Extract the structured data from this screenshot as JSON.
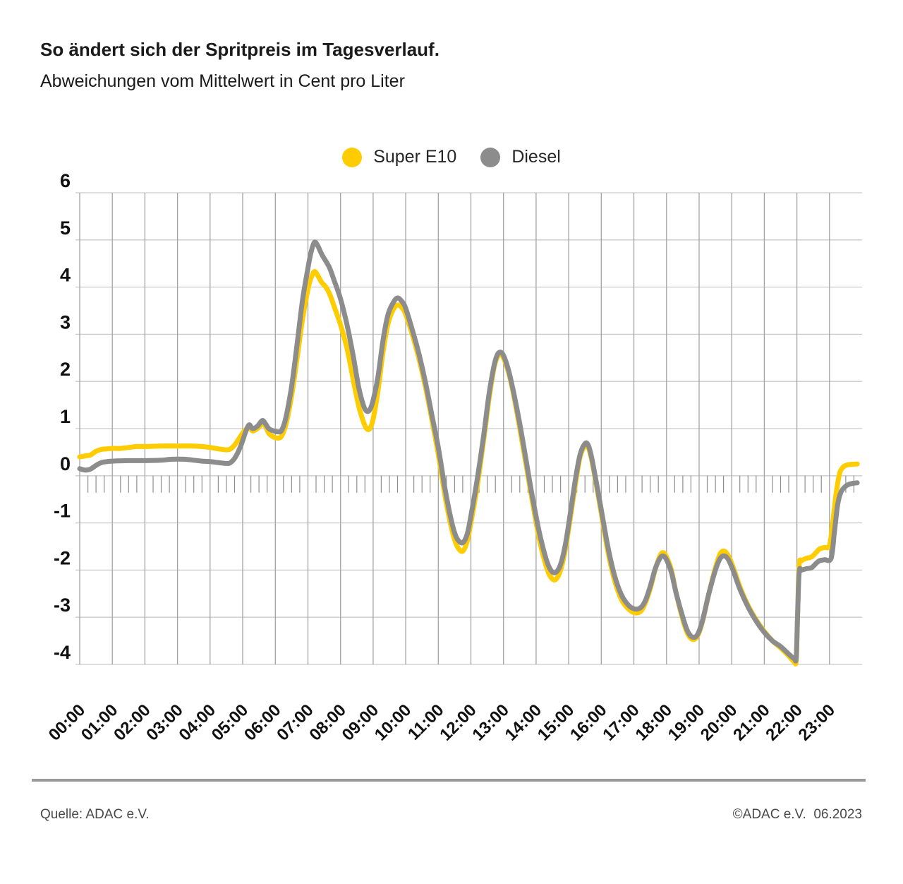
{
  "footer": {
    "source": "Quelle: ADAC e.V.",
    "copyright": "©ADAC e.V.  06.2023"
  },
  "chart_data": {
    "type": "line",
    "title": "So ändert sich der Spritpreis im Tagesverlauf.",
    "subtitle": "Abweichungen vom Mittelwert in Cent pro Liter",
    "xlabel": "",
    "ylabel": "Cent pro Liter (Abweichung vom Mittelwert)",
    "ylim": [
      -4,
      6
    ],
    "xlim_hours": [
      0,
      24
    ],
    "grid": true,
    "legend_position": "top-center",
    "y_ticks": [
      6,
      5,
      4,
      3,
      2,
      1,
      0,
      -1,
      -2,
      -3,
      -4
    ],
    "x_tick_labels": [
      "00:00",
      "01:00",
      "02:00",
      "03:00",
      "04:00",
      "05:00",
      "06:00",
      "07:00",
      "08:00",
      "09:00",
      "10:00",
      "11:00",
      "12:00",
      "13:00",
      "14:00",
      "15:00",
      "16:00",
      "17:00",
      "18:00",
      "19:00",
      "20:00",
      "21:00",
      "22:00",
      "23:00"
    ],
    "minor_tick_minutes": 15,
    "colors": {
      "super_e10": "#FFCC00",
      "diesel": "#8C8C8C",
      "grid_h": "#c9c9c9",
      "grid_v": "#a3a3a3",
      "tick": "#8f8f8f",
      "label": "#111111"
    },
    "series": [
      {
        "name": "Super E10",
        "color": "#FFCC00",
        "points": [
          [
            0.0,
            0.4
          ],
          [
            0.17,
            0.42
          ],
          [
            0.33,
            0.44
          ],
          [
            0.5,
            0.52
          ],
          [
            0.67,
            0.56
          ],
          [
            0.83,
            0.57
          ],
          [
            1.0,
            0.58
          ],
          [
            1.25,
            0.58
          ],
          [
            1.5,
            0.6
          ],
          [
            1.75,
            0.62
          ],
          [
            2.0,
            0.62
          ],
          [
            2.5,
            0.63
          ],
          [
            3.0,
            0.63
          ],
          [
            3.5,
            0.63
          ],
          [
            3.75,
            0.62
          ],
          [
            4.0,
            0.6
          ],
          [
            4.25,
            0.57
          ],
          [
            4.5,
            0.55
          ],
          [
            4.63,
            0.57
          ],
          [
            4.75,
            0.65
          ],
          [
            4.9,
            0.8
          ],
          [
            5.05,
            0.95
          ],
          [
            5.2,
            1.02
          ],
          [
            5.3,
            0.95
          ],
          [
            5.45,
            1.0
          ],
          [
            5.6,
            1.1
          ],
          [
            5.7,
            1.05
          ],
          [
            5.8,
            0.9
          ],
          [
            5.95,
            0.82
          ],
          [
            6.1,
            0.8
          ],
          [
            6.2,
            0.85
          ],
          [
            6.33,
            1.1
          ],
          [
            6.5,
            1.7
          ],
          [
            6.67,
            2.5
          ],
          [
            6.83,
            3.3
          ],
          [
            7.0,
            3.95
          ],
          [
            7.1,
            4.2
          ],
          [
            7.2,
            4.33
          ],
          [
            7.3,
            4.25
          ],
          [
            7.42,
            4.1
          ],
          [
            7.55,
            4.0
          ],
          [
            7.67,
            3.85
          ],
          [
            7.8,
            3.6
          ],
          [
            8.0,
            3.2
          ],
          [
            8.2,
            2.7
          ],
          [
            8.4,
            2.0
          ],
          [
            8.55,
            1.5
          ],
          [
            8.7,
            1.15
          ],
          [
            8.8,
            1.0
          ],
          [
            8.9,
            1.0
          ],
          [
            9.0,
            1.2
          ],
          [
            9.15,
            1.8
          ],
          [
            9.3,
            2.6
          ],
          [
            9.45,
            3.2
          ],
          [
            9.6,
            3.5
          ],
          [
            9.75,
            3.62
          ],
          [
            9.9,
            3.55
          ],
          [
            10.0,
            3.42
          ],
          [
            10.2,
            3.0
          ],
          [
            10.4,
            2.5
          ],
          [
            10.6,
            1.9
          ],
          [
            10.8,
            1.2
          ],
          [
            11.0,
            0.45
          ],
          [
            11.2,
            -0.4
          ],
          [
            11.4,
            -1.1
          ],
          [
            11.55,
            -1.45
          ],
          [
            11.7,
            -1.6
          ],
          [
            11.8,
            -1.55
          ],
          [
            11.9,
            -1.35
          ],
          [
            12.0,
            -1.0
          ],
          [
            12.2,
            -0.2
          ],
          [
            12.4,
            0.8
          ],
          [
            12.55,
            1.6
          ],
          [
            12.7,
            2.25
          ],
          [
            12.8,
            2.5
          ],
          [
            12.9,
            2.57
          ],
          [
            13.0,
            2.5
          ],
          [
            13.15,
            2.2
          ],
          [
            13.3,
            1.75
          ],
          [
            13.5,
            1.0
          ],
          [
            13.7,
            0.2
          ],
          [
            13.9,
            -0.6
          ],
          [
            14.1,
            -1.35
          ],
          [
            14.3,
            -1.9
          ],
          [
            14.45,
            -2.15
          ],
          [
            14.6,
            -2.2
          ],
          [
            14.75,
            -2.0
          ],
          [
            14.9,
            -1.55
          ],
          [
            15.05,
            -0.9
          ],
          [
            15.2,
            -0.2
          ],
          [
            15.35,
            0.4
          ],
          [
            15.5,
            0.63
          ],
          [
            15.6,
            0.6
          ],
          [
            15.7,
            0.35
          ],
          [
            15.85,
            -0.2
          ],
          [
            16.0,
            -0.8
          ],
          [
            16.2,
            -1.6
          ],
          [
            16.4,
            -2.2
          ],
          [
            16.6,
            -2.6
          ],
          [
            16.8,
            -2.8
          ],
          [
            17.0,
            -2.9
          ],
          [
            17.2,
            -2.88
          ],
          [
            17.35,
            -2.7
          ],
          [
            17.5,
            -2.4
          ],
          [
            17.65,
            -2.0
          ],
          [
            17.8,
            -1.7
          ],
          [
            17.9,
            -1.63
          ],
          [
            18.0,
            -1.72
          ],
          [
            18.15,
            -2.0
          ],
          [
            18.3,
            -2.5
          ],
          [
            18.5,
            -3.05
          ],
          [
            18.65,
            -3.35
          ],
          [
            18.8,
            -3.47
          ],
          [
            18.95,
            -3.4
          ],
          [
            19.1,
            -3.1
          ],
          [
            19.3,
            -2.5
          ],
          [
            19.5,
            -1.95
          ],
          [
            19.65,
            -1.65
          ],
          [
            19.78,
            -1.6
          ],
          [
            19.9,
            -1.7
          ],
          [
            20.05,
            -1.95
          ],
          [
            20.25,
            -2.35
          ],
          [
            20.5,
            -2.75
          ],
          [
            20.75,
            -3.05
          ],
          [
            21.0,
            -3.3
          ],
          [
            21.25,
            -3.5
          ],
          [
            21.5,
            -3.65
          ],
          [
            21.75,
            -3.82
          ],
          [
            21.92,
            -3.95
          ],
          [
            21.98,
            -3.9
          ],
          [
            22.02,
            -3.0
          ],
          [
            22.07,
            -1.9
          ],
          [
            22.15,
            -1.8
          ],
          [
            22.3,
            -1.75
          ],
          [
            22.45,
            -1.72
          ],
          [
            22.6,
            -1.62
          ],
          [
            22.7,
            -1.55
          ],
          [
            22.85,
            -1.52
          ],
          [
            23.0,
            -1.48
          ],
          [
            23.1,
            -1.0
          ],
          [
            23.2,
            -0.4
          ],
          [
            23.3,
            0.02
          ],
          [
            23.4,
            0.17
          ],
          [
            23.55,
            0.23
          ],
          [
            23.85,
            0.25
          ]
        ]
      },
      {
        "name": "Diesel",
        "color": "#8C8C8C",
        "points": [
          [
            0.0,
            0.15
          ],
          [
            0.17,
            0.12
          ],
          [
            0.33,
            0.14
          ],
          [
            0.5,
            0.22
          ],
          [
            0.67,
            0.28
          ],
          [
            0.83,
            0.3
          ],
          [
            1.0,
            0.31
          ],
          [
            1.5,
            0.32
          ],
          [
            2.0,
            0.32
          ],
          [
            2.5,
            0.33
          ],
          [
            2.83,
            0.35
          ],
          [
            3.2,
            0.35
          ],
          [
            3.5,
            0.33
          ],
          [
            3.75,
            0.31
          ],
          [
            4.0,
            0.3
          ],
          [
            4.25,
            0.28
          ],
          [
            4.5,
            0.26
          ],
          [
            4.63,
            0.28
          ],
          [
            4.78,
            0.4
          ],
          [
            4.95,
            0.65
          ],
          [
            5.1,
            0.95
          ],
          [
            5.2,
            1.08
          ],
          [
            5.3,
            1.0
          ],
          [
            5.45,
            1.05
          ],
          [
            5.6,
            1.17
          ],
          [
            5.7,
            1.1
          ],
          [
            5.8,
            1.0
          ],
          [
            5.95,
            0.95
          ],
          [
            6.1,
            0.93
          ],
          [
            6.2,
            0.97
          ],
          [
            6.33,
            1.25
          ],
          [
            6.5,
            1.9
          ],
          [
            6.67,
            2.8
          ],
          [
            6.83,
            3.7
          ],
          [
            7.0,
            4.4
          ],
          [
            7.1,
            4.75
          ],
          [
            7.2,
            4.95
          ],
          [
            7.3,
            4.88
          ],
          [
            7.42,
            4.7
          ],
          [
            7.55,
            4.55
          ],
          [
            7.67,
            4.4
          ],
          [
            7.8,
            4.15
          ],
          [
            8.0,
            3.75
          ],
          [
            8.2,
            3.2
          ],
          [
            8.4,
            2.5
          ],
          [
            8.55,
            1.9
          ],
          [
            8.7,
            1.5
          ],
          [
            8.8,
            1.37
          ],
          [
            8.9,
            1.4
          ],
          [
            9.0,
            1.6
          ],
          [
            9.15,
            2.1
          ],
          [
            9.3,
            2.85
          ],
          [
            9.45,
            3.4
          ],
          [
            9.6,
            3.65
          ],
          [
            9.75,
            3.77
          ],
          [
            9.9,
            3.68
          ],
          [
            10.0,
            3.55
          ],
          [
            10.2,
            3.1
          ],
          [
            10.4,
            2.6
          ],
          [
            10.6,
            2.0
          ],
          [
            10.8,
            1.3
          ],
          [
            11.0,
            0.6
          ],
          [
            11.2,
            -0.25
          ],
          [
            11.4,
            -0.95
          ],
          [
            11.55,
            -1.3
          ],
          [
            11.7,
            -1.42
          ],
          [
            11.8,
            -1.38
          ],
          [
            11.9,
            -1.2
          ],
          [
            12.0,
            -0.85
          ],
          [
            12.2,
            -0.05
          ],
          [
            12.4,
            0.9
          ],
          [
            12.55,
            1.7
          ],
          [
            12.7,
            2.3
          ],
          [
            12.8,
            2.55
          ],
          [
            12.9,
            2.62
          ],
          [
            13.0,
            2.55
          ],
          [
            13.15,
            2.25
          ],
          [
            13.3,
            1.8
          ],
          [
            13.5,
            1.1
          ],
          [
            13.7,
            0.3
          ],
          [
            13.9,
            -0.5
          ],
          [
            14.1,
            -1.2
          ],
          [
            14.3,
            -1.75
          ],
          [
            14.45,
            -2.0
          ],
          [
            14.6,
            -2.05
          ],
          [
            14.75,
            -1.88
          ],
          [
            14.9,
            -1.45
          ],
          [
            15.05,
            -0.8
          ],
          [
            15.2,
            -0.1
          ],
          [
            15.35,
            0.45
          ],
          [
            15.5,
            0.68
          ],
          [
            15.6,
            0.65
          ],
          [
            15.7,
            0.4
          ],
          [
            15.85,
            -0.15
          ],
          [
            16.0,
            -0.72
          ],
          [
            16.2,
            -1.5
          ],
          [
            16.4,
            -2.1
          ],
          [
            16.6,
            -2.5
          ],
          [
            16.8,
            -2.72
          ],
          [
            17.0,
            -2.82
          ],
          [
            17.2,
            -2.8
          ],
          [
            17.35,
            -2.65
          ],
          [
            17.5,
            -2.35
          ],
          [
            17.65,
            -1.98
          ],
          [
            17.8,
            -1.75
          ],
          [
            17.9,
            -1.7
          ],
          [
            18.0,
            -1.78
          ],
          [
            18.15,
            -2.05
          ],
          [
            18.3,
            -2.5
          ],
          [
            18.5,
            -3.0
          ],
          [
            18.65,
            -3.3
          ],
          [
            18.8,
            -3.42
          ],
          [
            18.95,
            -3.37
          ],
          [
            19.1,
            -3.08
          ],
          [
            19.3,
            -2.5
          ],
          [
            19.5,
            -2.0
          ],
          [
            19.65,
            -1.75
          ],
          [
            19.78,
            -1.7
          ],
          [
            19.9,
            -1.78
          ],
          [
            20.05,
            -2.02
          ],
          [
            20.25,
            -2.4
          ],
          [
            20.5,
            -2.78
          ],
          [
            20.75,
            -3.08
          ],
          [
            21.0,
            -3.32
          ],
          [
            21.25,
            -3.5
          ],
          [
            21.5,
            -3.62
          ],
          [
            21.75,
            -3.78
          ],
          [
            21.92,
            -3.88
          ],
          [
            21.98,
            -3.85
          ],
          [
            22.02,
            -3.0
          ],
          [
            22.07,
            -2.05
          ],
          [
            22.15,
            -2.0
          ],
          [
            22.3,
            -1.97
          ],
          [
            22.45,
            -1.95
          ],
          [
            22.6,
            -1.85
          ],
          [
            22.7,
            -1.8
          ],
          [
            22.85,
            -1.78
          ],
          [
            23.05,
            -1.75
          ],
          [
            23.15,
            -1.2
          ],
          [
            23.25,
            -0.62
          ],
          [
            23.35,
            -0.35
          ],
          [
            23.5,
            -0.22
          ],
          [
            23.65,
            -0.17
          ],
          [
            23.85,
            -0.15
          ]
        ]
      }
    ]
  }
}
